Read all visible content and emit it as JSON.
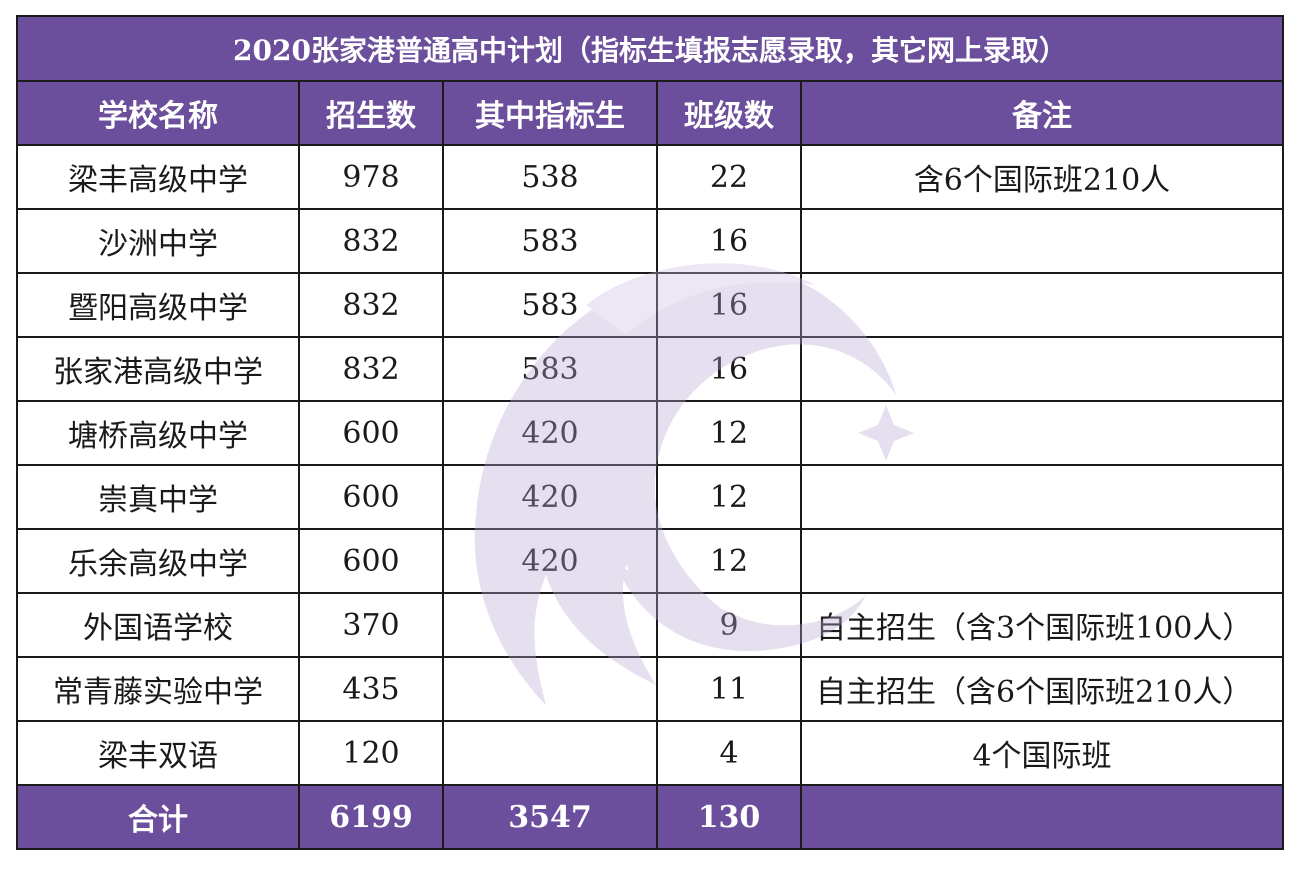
{
  "title": "2020张家港普通高中计划（指标生填报志愿录取，其它网上录取）",
  "columns": [
    "学校名称",
    "招生数",
    "其中指标生",
    "班级数",
    "备注"
  ],
  "rows": [
    {
      "school": "梁丰高级中学",
      "enroll": "978",
      "quota": "538",
      "classes": "22",
      "note": "含6个国际班210人",
      "note_align": "center"
    },
    {
      "school": "沙洲中学",
      "enroll": "832",
      "quota": "583",
      "classes": "16",
      "note": "",
      "note_align": "center"
    },
    {
      "school": "暨阳高级中学",
      "enroll": "832",
      "quota": "583",
      "classes": "16",
      "note": "",
      "note_align": "center"
    },
    {
      "school": "张家港高级中学",
      "enroll": "832",
      "quota": "583",
      "classes": "16",
      "note": "",
      "note_align": "center"
    },
    {
      "school": "塘桥高级中学",
      "enroll": "600",
      "quota": "420",
      "classes": "12",
      "note": "",
      "note_align": "center"
    },
    {
      "school": "崇真中学",
      "enroll": "600",
      "quota": "420",
      "classes": "12",
      "note": "",
      "note_align": "center"
    },
    {
      "school": "乐余高级中学",
      "enroll": "600",
      "quota": "420",
      "classes": "12",
      "note": "",
      "note_align": "center"
    },
    {
      "school": "外国语学校",
      "enroll": "370",
      "quota": "",
      "classes": "9",
      "note": "自主招生（含3个国际班100人）",
      "note_align": "left"
    },
    {
      "school": "常青藤实验中学",
      "enroll": "435",
      "quota": "",
      "classes": "11",
      "note": "自主招生（含6个国际班210人）",
      "note_align": "left"
    },
    {
      "school": "梁丰双语",
      "enroll": "120",
      "quota": "",
      "classes": "4",
      "note": "4个国际班",
      "note_align": "center"
    }
  ],
  "total": {
    "label": "合计",
    "enroll": "6199",
    "quota": "3547",
    "classes": "130",
    "note": ""
  },
  "colors": {
    "header_bg": "#6b4f9c",
    "header_text": "#ffffff",
    "border": "#1a1a1a",
    "watermark": "#b9a6d6"
  },
  "watermark_icon": "crescent-flame-logo-icon"
}
